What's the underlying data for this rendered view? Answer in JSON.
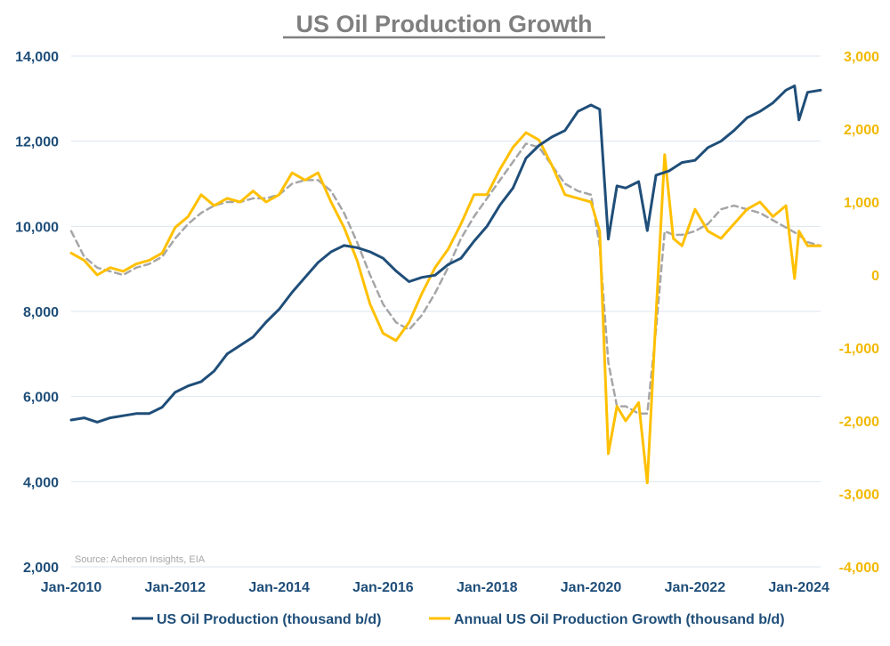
{
  "chart_data": {
    "type": "line",
    "title": "US Oil Production Growth",
    "source": "Source: Acheron Insights, EIA",
    "x_range": [
      "2010-01",
      "2024-06"
    ],
    "x_tick_labels": [
      "Jan-2010",
      "Jan-2012",
      "Jan-2014",
      "Jan-2016",
      "Jan-2018",
      "Jan-2020",
      "Jan-2022",
      "Jan-2024"
    ],
    "x_tick_dates": [
      "2010-01",
      "2012-01",
      "2014-01",
      "2016-01",
      "2018-01",
      "2020-01",
      "2022-01",
      "2024-01"
    ],
    "y_left": {
      "min": 2000,
      "max": 14000,
      "ticks": [
        2000,
        4000,
        6000,
        8000,
        10000,
        12000,
        14000
      ],
      "labels": [
        "2,000",
        "4,000",
        "6,000",
        "8,000",
        "10,000",
        "12,000",
        "14,000"
      ]
    },
    "y_right": {
      "min": -4000,
      "max": 3000,
      "ticks": [
        -4000,
        -3000,
        -2000,
        -1000,
        0,
        1000,
        2000,
        3000
      ],
      "labels": [
        "-4,000",
        "-3,000",
        "-2,000",
        "-1,000",
        "0",
        "1,000",
        "2,000",
        "3,000"
      ]
    },
    "grid": "horizontal",
    "legend_position": "bottom",
    "colors": {
      "production": "#1f4e79",
      "growth": "#ffc000",
      "trend": "#a6a6a6",
      "grid": "#dbe5f1"
    },
    "series": [
      {
        "name": "US Oil Production (thousand b/d)",
        "axis": "left",
        "x": [
          "2010-01",
          "2010-04",
          "2010-07",
          "2010-10",
          "2011-01",
          "2011-04",
          "2011-07",
          "2011-10",
          "2012-01",
          "2012-04",
          "2012-07",
          "2012-10",
          "2013-01",
          "2013-04",
          "2013-07",
          "2013-10",
          "2014-01",
          "2014-04",
          "2014-07",
          "2014-10",
          "2015-01",
          "2015-04",
          "2015-07",
          "2015-10",
          "2016-01",
          "2016-04",
          "2016-07",
          "2016-10",
          "2017-01",
          "2017-04",
          "2017-07",
          "2017-10",
          "2018-01",
          "2018-04",
          "2018-07",
          "2018-10",
          "2019-01",
          "2019-04",
          "2019-07",
          "2019-10",
          "2020-01",
          "2020-03",
          "2020-05",
          "2020-07",
          "2020-09",
          "2020-12",
          "2021-02",
          "2021-04",
          "2021-07",
          "2021-10",
          "2022-01",
          "2022-04",
          "2022-07",
          "2022-10",
          "2023-01",
          "2023-04",
          "2023-07",
          "2023-10",
          "2023-12",
          "2024-01",
          "2024-03",
          "2024-06"
        ],
        "values": [
          5450,
          5500,
          5400,
          5500,
          5550,
          5600,
          5600,
          5750,
          6100,
          6250,
          6350,
          6600,
          7000,
          7200,
          7400,
          7750,
          8050,
          8450,
          8800,
          9150,
          9400,
          9550,
          9500,
          9400,
          9250,
          8950,
          8700,
          8800,
          8850,
          9100,
          9250,
          9650,
          10000,
          10500,
          10900,
          11600,
          11900,
          12100,
          12250,
          12700,
          12850,
          12750,
          9700,
          10950,
          10900,
          11050,
          9900,
          11200,
          11300,
          11500,
          11550,
          11850,
          12000,
          12250,
          12550,
          12700,
          12900,
          13200,
          13300,
          12500,
          13150,
          13200
        ]
      },
      {
        "name": "Annual US Oil Production Growth (thousand b/d)",
        "axis": "right",
        "x": [
          "2010-01",
          "2010-04",
          "2010-07",
          "2010-10",
          "2011-01",
          "2011-04",
          "2011-07",
          "2011-10",
          "2012-01",
          "2012-04",
          "2012-07",
          "2012-10",
          "2013-01",
          "2013-04",
          "2013-07",
          "2013-10",
          "2014-01",
          "2014-04",
          "2014-07",
          "2014-10",
          "2015-01",
          "2015-04",
          "2015-07",
          "2015-10",
          "2016-01",
          "2016-04",
          "2016-07",
          "2016-10",
          "2017-01",
          "2017-04",
          "2017-07",
          "2017-10",
          "2018-01",
          "2018-04",
          "2018-07",
          "2018-10",
          "2019-01",
          "2019-04",
          "2019-07",
          "2019-10",
          "2020-01",
          "2020-03",
          "2020-05",
          "2020-07",
          "2020-09",
          "2020-12",
          "2021-02",
          "2021-04",
          "2021-06",
          "2021-08",
          "2021-10",
          "2022-01",
          "2022-04",
          "2022-07",
          "2022-10",
          "2023-01",
          "2023-04",
          "2023-07",
          "2023-10",
          "2023-12",
          "2024-01",
          "2024-03",
          "2024-06"
        ],
        "values": [
          300,
          200,
          0,
          100,
          50,
          150,
          200,
          300,
          650,
          800,
          1100,
          950,
          1050,
          1000,
          1150,
          1000,
          1100,
          1400,
          1300,
          1400,
          1000,
          650,
          200,
          -400,
          -800,
          -900,
          -650,
          -250,
          100,
          350,
          700,
          1100,
          1100,
          1450,
          1750,
          1950,
          1850,
          1500,
          1100,
          1050,
          1000,
          600,
          -2450,
          -1800,
          -2000,
          -1750,
          -2850,
          -550,
          1650,
          500,
          400,
          900,
          600,
          500,
          700,
          900,
          1000,
          800,
          950,
          -50,
          600,
          400,
          400
        ]
      },
      {
        "name": "",
        "axis": "right",
        "style": "dashed",
        "x": [
          "2010-01",
          "2010-04",
          "2010-07",
          "2010-10",
          "2011-01",
          "2011-04",
          "2011-07",
          "2011-10",
          "2012-01",
          "2012-04",
          "2012-07",
          "2012-10",
          "2013-01",
          "2013-04",
          "2013-07",
          "2013-10",
          "2014-01",
          "2014-04",
          "2014-07",
          "2014-10",
          "2015-01",
          "2015-04",
          "2015-07",
          "2015-10",
          "2016-01",
          "2016-04",
          "2016-07",
          "2016-10",
          "2017-01",
          "2017-04",
          "2017-07",
          "2017-10",
          "2018-01",
          "2018-04",
          "2018-07",
          "2018-10",
          "2019-01",
          "2019-04",
          "2019-07",
          "2019-10",
          "2020-01",
          "2020-03",
          "2020-05",
          "2020-07",
          "2020-09",
          "2020-12",
          "2021-02",
          "2021-04",
          "2021-06",
          "2021-08",
          "2021-10",
          "2022-01",
          "2022-04",
          "2022-07",
          "2022-10",
          "2023-01",
          "2023-04",
          "2023-07",
          "2023-10",
          "2024-01",
          "2024-03",
          "2024-06"
        ],
        "values": [
          600,
          250,
          100,
          50,
          0,
          100,
          150,
          250,
          500,
          700,
          850,
          950,
          1000,
          1000,
          1050,
          1050,
          1100,
          1250,
          1300,
          1300,
          1150,
          850,
          450,
          0,
          -400,
          -650,
          -750,
          -550,
          -250,
          100,
          500,
          800,
          1050,
          1300,
          1550,
          1800,
          1750,
          1500,
          1250,
          1150,
          1100,
          400,
          -1200,
          -1800,
          -1800,
          -1900,
          -1900,
          -750,
          600,
          550,
          550,
          600,
          700,
          900,
          950,
          900,
          850,
          750,
          650,
          550,
          450,
          400
        ]
      }
    ]
  }
}
